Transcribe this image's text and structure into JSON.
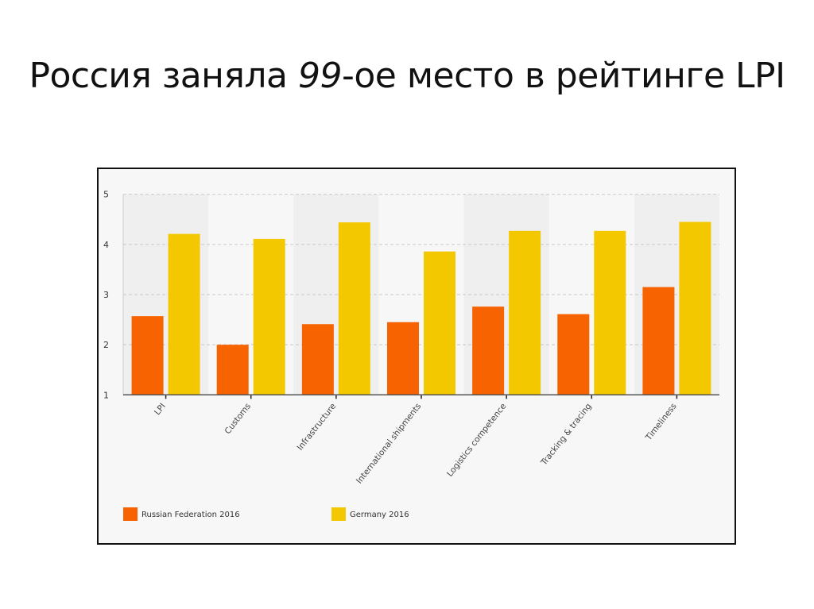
{
  "slide_title": {
    "before": "Россия заняла ",
    "italic": "99",
    "after": "-ое место в рейтинге LPI"
  },
  "chart_data": {
    "type": "bar",
    "title": "",
    "xlabel": "",
    "ylabel": "",
    "ylim": [
      1,
      5
    ],
    "yticks": [
      1,
      2,
      3,
      4,
      5
    ],
    "grid": true,
    "legend_position": "bottom-left",
    "categories": [
      "LPI",
      "Customs",
      "Infrastructure",
      "International shipments",
      "Logistics competence",
      "Tracking & tracing",
      "Timeliness"
    ],
    "series": [
      {
        "name": "Russian Federation 2016",
        "color": "#f76300",
        "values": [
          2.57,
          2.0,
          2.41,
          2.45,
          2.76,
          2.61,
          3.15
        ]
      },
      {
        "name": "Germany 2016",
        "color": "#f4c800",
        "values": [
          4.21,
          4.11,
          4.44,
          3.86,
          4.27,
          4.27,
          4.45
        ]
      }
    ]
  }
}
